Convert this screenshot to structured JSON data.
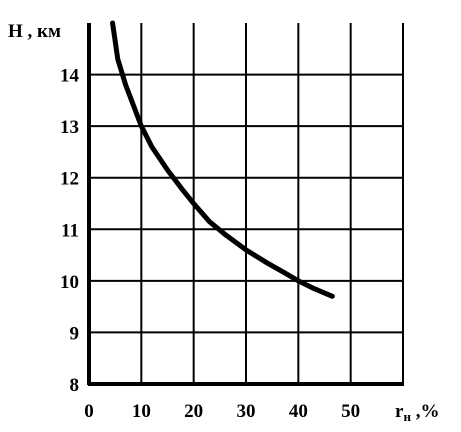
{
  "chart_data": {
    "type": "line",
    "title": "",
    "ylabel": "H , км",
    "xlabel_main": "r",
    "xlabel_sub": "н",
    "xlabel_tail": " ,%",
    "xlim": [
      0,
      60
    ],
    "ylim": [
      8,
      15
    ],
    "x_ticks": [
      0,
      10,
      20,
      30,
      40,
      50
    ],
    "y_ticks": [
      8,
      9,
      10,
      11,
      12,
      13,
      14
    ],
    "grid": true,
    "series": [
      {
        "x": [
          4.5,
          5.5,
          7,
          8.5,
          10,
          12,
          15,
          18,
          20,
          23,
          26,
          30,
          34,
          38,
          40,
          43,
          46.5
        ],
        "y": [
          15.0,
          14.3,
          13.8,
          13.4,
          13.0,
          12.6,
          12.15,
          11.75,
          11.5,
          11.15,
          10.9,
          10.6,
          10.35,
          10.12,
          10.0,
          9.85,
          9.7
        ]
      }
    ],
    "colors": {
      "line": "#000000",
      "grid": "#000000",
      "background": "#ffffff"
    }
  }
}
